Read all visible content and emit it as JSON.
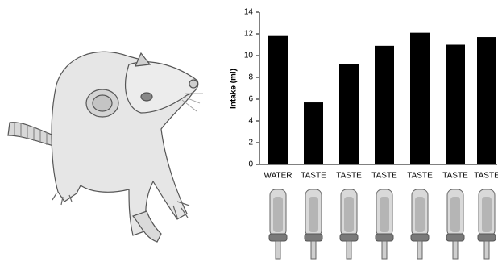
{
  "chart_data": {
    "type": "bar",
    "y_label": "Intake (ml)",
    "categories": [
      "WATER",
      "TASTE",
      "TASTE",
      "TASTE",
      "TASTE",
      "TASTE",
      "TASTE"
    ],
    "values": [
      11.8,
      5.7,
      9.2,
      10.9,
      12.1,
      11.0,
      11.7
    ],
    "color": "#000000",
    "ylim": [
      0,
      14
    ],
    "yticks": [
      0,
      2,
      4,
      6,
      8,
      10,
      12,
      14
    ],
    "grid": false
  }
}
